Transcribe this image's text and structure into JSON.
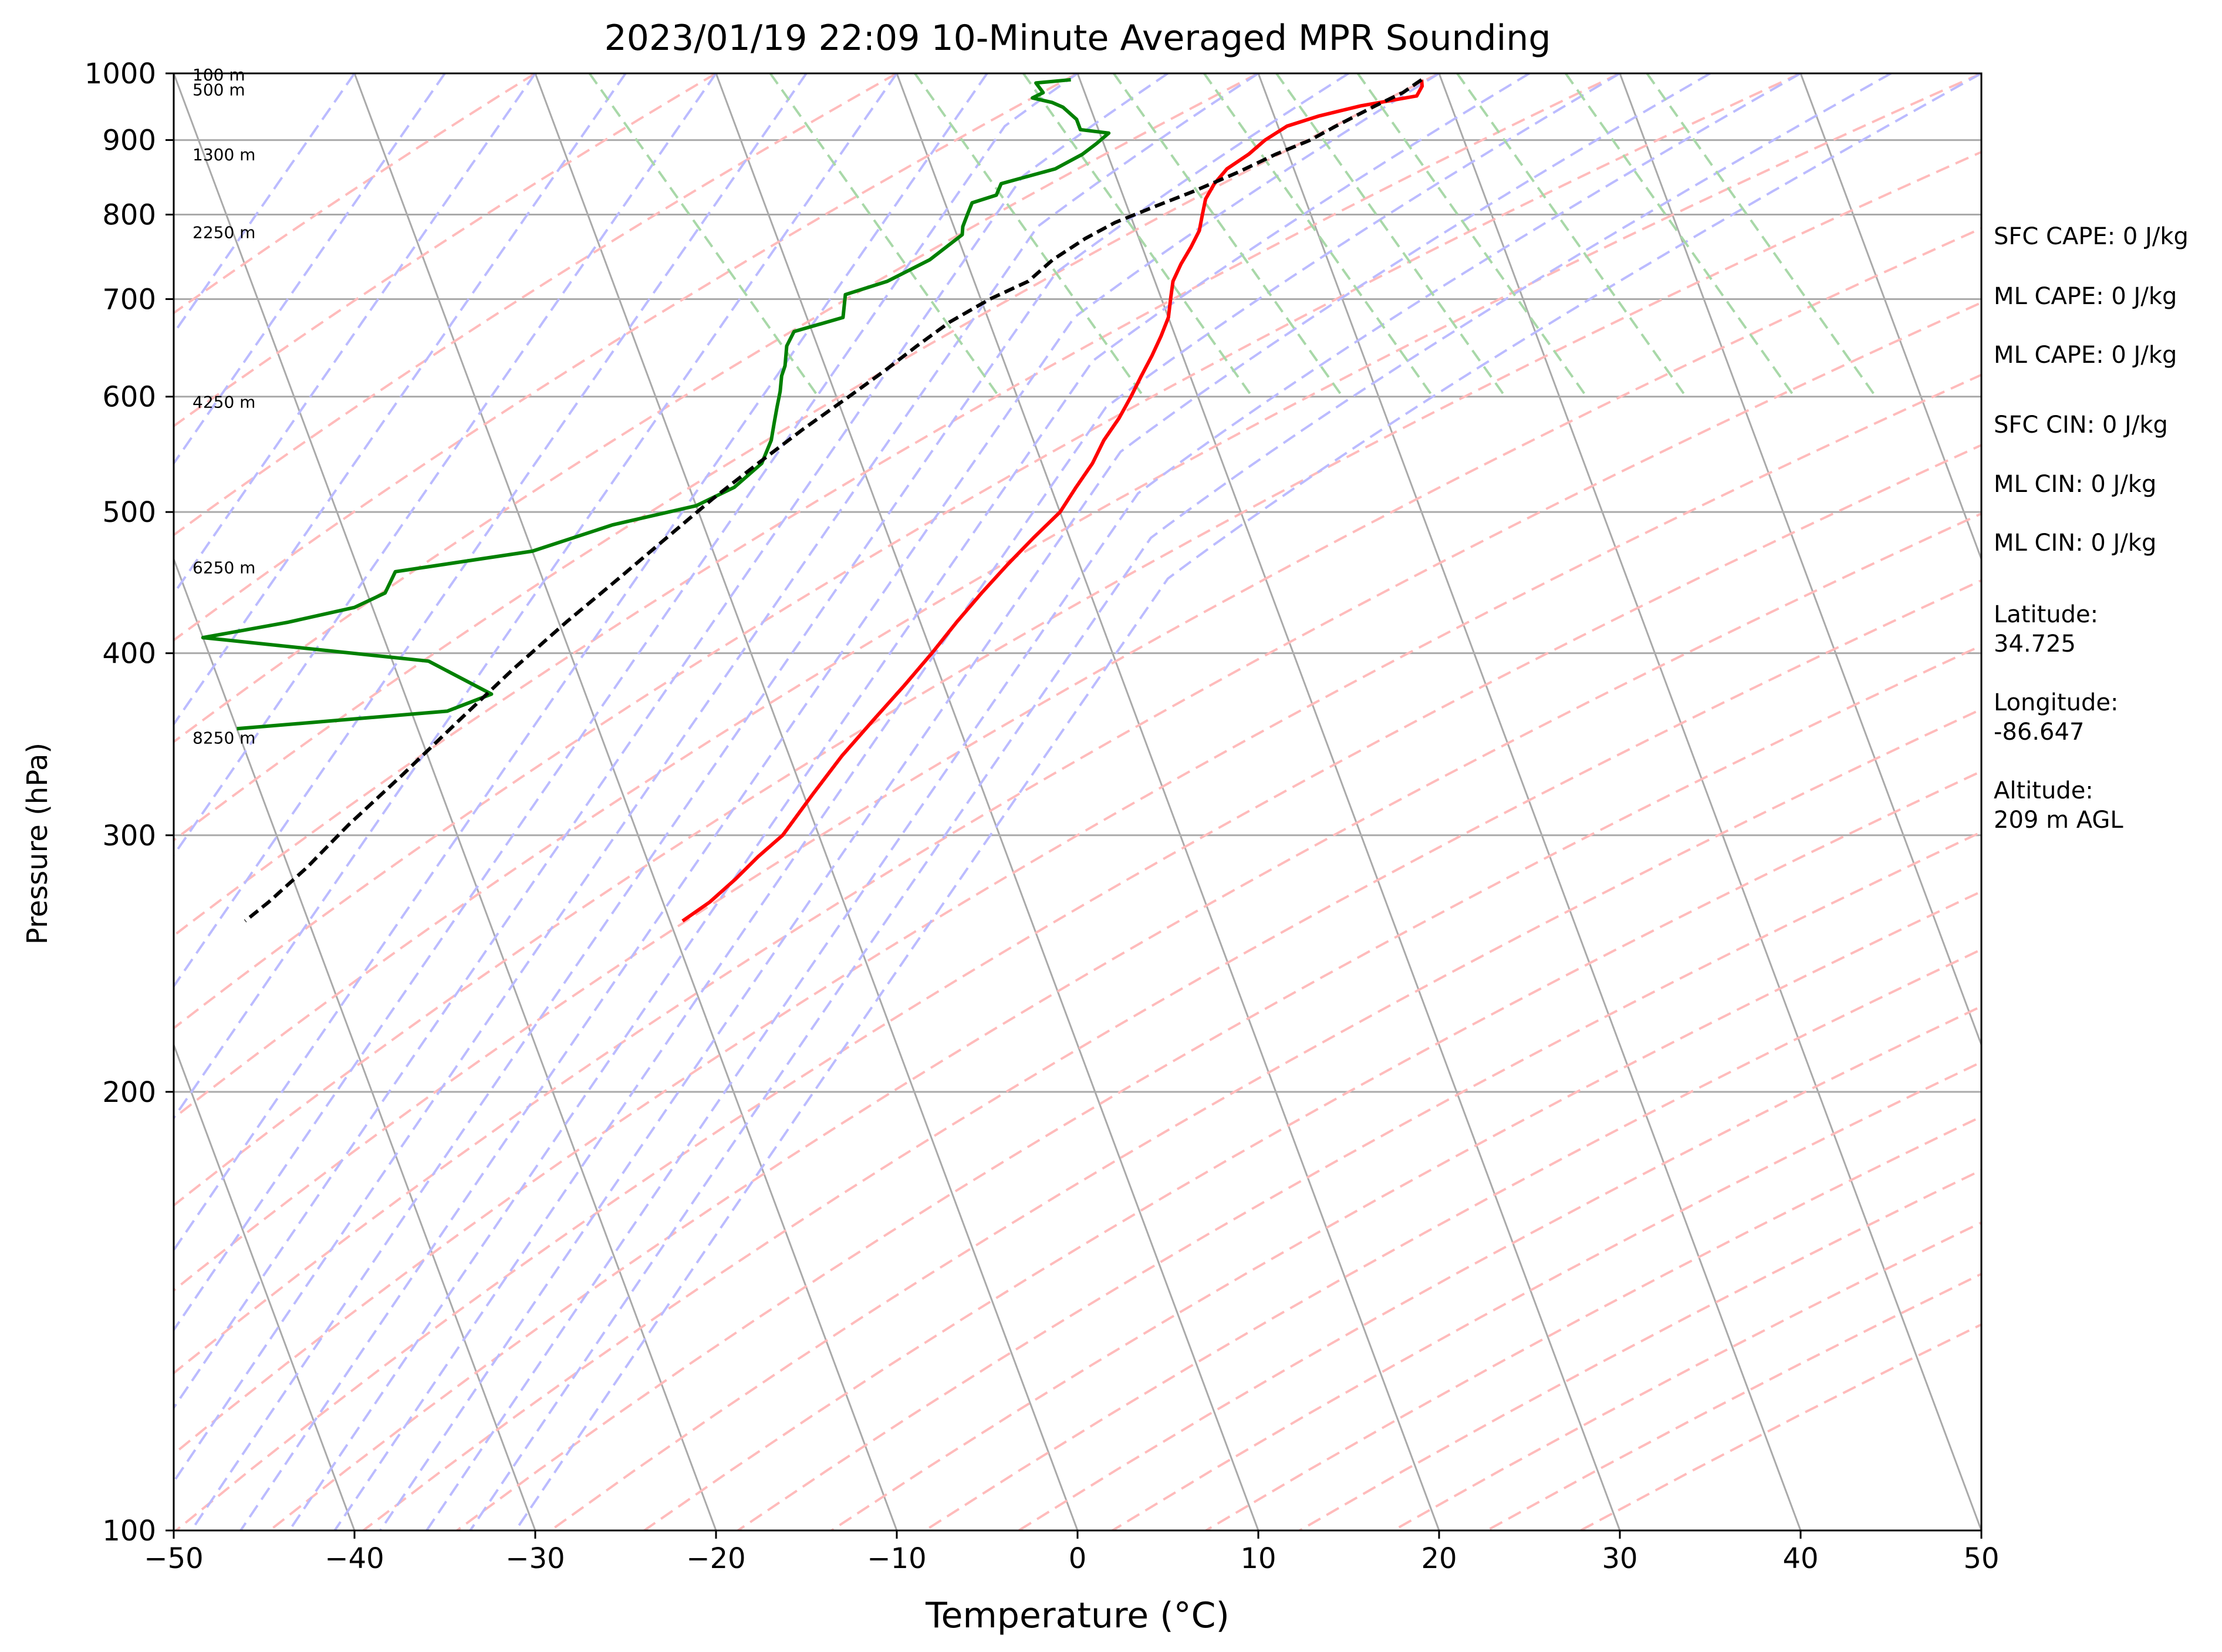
{
  "chart_data": {
    "type": "line",
    "title": "2023/01/19 22:09 10-Minute Averaged MPR Sounding",
    "xlabel": "Temperature (°C)",
    "ylabel": "Pressure (hPa)",
    "xlim": [
      -50,
      50
    ],
    "ylim": [
      1000,
      100
    ],
    "y_scale": "log",
    "skew": true,
    "x_ticks": [
      "−50",
      "−40",
      "−30",
      "−20",
      "−10",
      "0",
      "10",
      "20",
      "30",
      "40",
      "50"
    ],
    "y_ticks": [
      "100",
      "200",
      "300",
      "400",
      "500",
      "600",
      "700",
      "800",
      "900",
      "1000"
    ],
    "grid": true,
    "colors": {
      "temperature": "#ff0000",
      "dewpoint": "#008000",
      "parcel": "#000000",
      "isotherms": "#aaaaaa",
      "dry_adiabats": "#ffbbbb",
      "moist_adiabats": "#bbbbff",
      "mixing_ratio": "#a8d8a8"
    },
    "series": [
      {
        "key": "temperature",
        "points": [
          [
            18.9,
            990
          ],
          [
            18.8,
            980
          ],
          [
            18.3,
            965
          ],
          [
            15.0,
            950
          ],
          [
            12.5,
            935
          ],
          [
            10.5,
            920
          ],
          [
            9.0,
            900
          ],
          [
            7.8,
            880
          ],
          [
            6.3,
            860
          ],
          [
            5.3,
            840
          ],
          [
            4.5,
            820
          ],
          [
            4.0,
            800
          ],
          [
            3.5,
            780
          ],
          [
            2.7,
            760
          ],
          [
            1.8,
            740
          ],
          [
            1.0,
            720
          ],
          [
            0.5,
            700
          ],
          [
            0.0,
            680
          ],
          [
            -0.8,
            660
          ],
          [
            -1.7,
            640
          ],
          [
            -2.7,
            620
          ],
          [
            -3.7,
            600
          ],
          [
            -4.8,
            580
          ],
          [
            -6.1,
            560
          ],
          [
            -7.2,
            540
          ],
          [
            -8.6,
            520
          ],
          [
            -10.0,
            500
          ],
          [
            -12.0,
            480
          ],
          [
            -14.0,
            460
          ],
          [
            -16.0,
            440
          ],
          [
            -18.0,
            420
          ],
          [
            -20.0,
            400
          ],
          [
            -22.2,
            380
          ],
          [
            -24.6,
            360
          ],
          [
            -27.1,
            340
          ],
          [
            -29.5,
            320
          ],
          [
            -32.0,
            300
          ],
          [
            -33.8,
            290
          ],
          [
            -35.5,
            280
          ],
          [
            -37.4,
            270
          ],
          [
            -39.3,
            262
          ]
        ]
      },
      {
        "key": "dewpoint",
        "points": [
          [
            -0.5,
            990
          ],
          [
            -2.5,
            985
          ],
          [
            -2.3,
            970
          ],
          [
            -3.0,
            962
          ],
          [
            -2.0,
            955
          ],
          [
            -1.5,
            948
          ],
          [
            -1.0,
            930
          ],
          [
            -1.0,
            915
          ],
          [
            0.5,
            910
          ],
          [
            -0.4,
            895
          ],
          [
            -1.4,
            880
          ],
          [
            -3.2,
            860
          ],
          [
            -6.5,
            840
          ],
          [
            -7.0,
            825
          ],
          [
            -8.5,
            815
          ],
          [
            -9.0,
            800
          ],
          [
            -9.5,
            785
          ],
          [
            -9.7,
            775
          ],
          [
            -12.0,
            745
          ],
          [
            -14.8,
            720
          ],
          [
            -17.4,
            705
          ],
          [
            -18.0,
            680
          ],
          [
            -21.0,
            665
          ],
          [
            -21.7,
            650
          ],
          [
            -22.2,
            630
          ],
          [
            -22.6,
            620
          ],
          [
            -23.0,
            605
          ],
          [
            -23.5,
            590
          ],
          [
            -24.0,
            575
          ],
          [
            -24.5,
            560
          ],
          [
            -25.5,
            540
          ],
          [
            -27.5,
            520
          ],
          [
            -30.0,
            505
          ],
          [
            -35.0,
            490
          ],
          [
            -40.0,
            470
          ],
          [
            -48.0,
            455
          ],
          [
            -49.0,
            440
          ],
          [
            -51.0,
            430
          ],
          [
            -55.0,
            420
          ],
          [
            -60.0,
            410
          ],
          [
            -48.0,
            395
          ],
          [
            -45.2,
            375
          ],
          [
            -48.0,
            365
          ],
          [
            -60.0,
            355
          ]
        ]
      },
      {
        "key": "parcel",
        "points": [
          [
            18.9,
            990
          ],
          [
            17.6,
            970
          ],
          [
            15.8,
            950
          ],
          [
            13.2,
            920
          ],
          [
            11.5,
            900
          ],
          [
            9.3,
            880
          ],
          [
            6.8,
            855
          ],
          [
            4.0,
            830
          ],
          [
            1.5,
            810
          ],
          [
            -1.0,
            790
          ],
          [
            -3.0,
            770
          ],
          [
            -5.2,
            745
          ],
          [
            -7.0,
            720
          ],
          [
            -9.5,
            700
          ],
          [
            -12.2,
            675
          ],
          [
            -14.5,
            650
          ],
          [
            -16.8,
            625
          ],
          [
            -19.3,
            600
          ],
          [
            -22.5,
            570
          ],
          [
            -25.7,
            540
          ],
          [
            -29.0,
            510
          ],
          [
            -32.3,
            480
          ],
          [
            -35.8,
            450
          ],
          [
            -39.6,
            420
          ],
          [
            -43.5,
            390
          ],
          [
            -47.5,
            360
          ],
          [
            -51.8,
            330
          ],
          [
            -55.8,
            305
          ],
          [
            -59.0,
            285
          ],
          [
            -61.8,
            270
          ],
          [
            -63.5,
            262
          ]
        ]
      }
    ],
    "annotations": [
      "SFC CAPE: 0 J/kg",
      "ML CAPE: 0 J/kg",
      "ML CAPE: 0 J/kg",
      "SFC CIN: 0 J/kg",
      "ML CIN: 0 J/kg",
      "ML CIN: 0 J/kg"
    ],
    "height_labels": [
      {
        "label": "8250 m",
        "p": 350
      },
      {
        "label": "6250 m",
        "p": 458
      },
      {
        "label": "4250 m",
        "p": 595
      },
      {
        "label": "2250 m",
        "p": 778
      },
      {
        "label": "1300 m",
        "p": 880
      },
      {
        "label": "500 m",
        "p": 975
      },
      {
        "label": "100 m",
        "p": 998
      }
    ],
    "station": {
      "latitude_label": "Latitude:",
      "latitude": "34.725",
      "longitude_label": "Longitude:",
      "longitude": "-86.647",
      "altitude_label": "Altitude:",
      "altitude": "209 m AGL"
    }
  }
}
